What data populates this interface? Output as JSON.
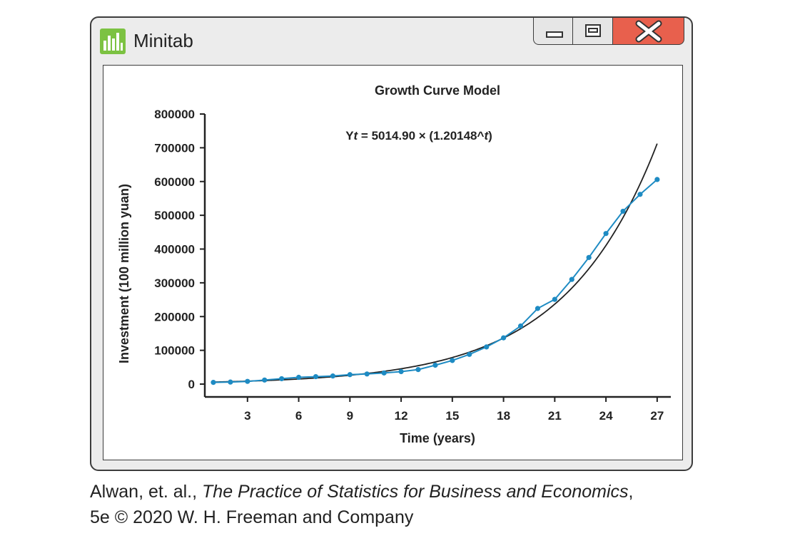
{
  "window": {
    "title": "Minitab",
    "icons": {
      "app": "minitab-bar-chart-icon",
      "minimize": "minimize-icon",
      "maximize": "maximize-icon",
      "close": "close-x-icon"
    },
    "colors": {
      "close_button": "#e8604d",
      "app_icon": "#7cc242"
    }
  },
  "chart_data": {
    "type": "line",
    "title": "Growth Curve Model",
    "equation": {
      "prefix": "Y",
      "var": "t",
      "middle": " = 5014.90 × (1.20148^",
      "var2": "t",
      "suffix": ")"
    },
    "xlabel": "Time (years)",
    "ylabel": "Investment (100 million yuan)",
    "xlim": [
      0.5,
      27.8
    ],
    "ylim": [
      0,
      800000
    ],
    "xticks": [
      3,
      6,
      9,
      12,
      15,
      18,
      21,
      24,
      27
    ],
    "yticks": [
      0,
      100000,
      200000,
      300000,
      400000,
      500000,
      600000,
      700000,
      800000
    ],
    "model": {
      "a": 5014.9,
      "b": 1.20148,
      "t_range": [
        1,
        27
      ]
    },
    "series": [
      {
        "color": "#1e8bc3",
        "x": [
          1,
          2,
          3,
          4,
          5,
          6,
          7,
          8,
          9,
          10,
          11,
          12,
          13,
          14,
          15,
          16,
          17,
          18,
          19,
          20,
          21,
          22,
          23,
          24,
          25,
          26,
          27
        ],
        "y": [
          5000,
          6000,
          8000,
          12000,
          16000,
          20000,
          22000,
          24000,
          28000,
          30000,
          33000,
          37000,
          43000,
          56000,
          70000,
          88000,
          110000,
          137000,
          172000,
          224000,
          251000,
          310000,
          375000,
          446000,
          512000,
          562000,
          606000
        ]
      }
    ]
  },
  "caption": {
    "line1_prefix": "Alwan, et. al., ",
    "line1_italic": "The Practice of Statistics for Business and Economics",
    "line1_suffix": ",",
    "line2": "5e © 2020 W. H. Freeman and Company"
  }
}
